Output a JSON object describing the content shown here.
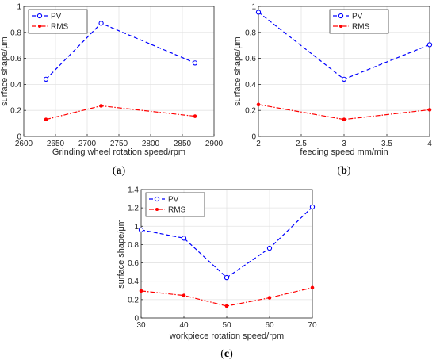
{
  "chart_data": [
    {
      "type": "line",
      "panel": "(a)",
      "xlabel": "Grinding wheel rotation speed/rpm",
      "ylabel": "surface shape/μm",
      "xlim": [
        2600,
        2900
      ],
      "ylim": [
        0,
        1
      ],
      "xticks": [
        2600,
        2650,
        2700,
        2750,
        2800,
        2850,
        2900
      ],
      "yticks": [
        0,
        0.2,
        0.4,
        0.6,
        0.8,
        1
      ],
      "grid": true,
      "legend_position": "top-left",
      "x": [
        2635,
        2722,
        2870
      ],
      "series": [
        {
          "name": "PV",
          "color": "#0000ff",
          "dash": "dashed",
          "marker": "open-circle",
          "values": [
            0.44,
            0.87,
            0.565
          ]
        },
        {
          "name": "RMS",
          "color": "#ff0000",
          "dash": "dash-dot",
          "marker": "filled-dot",
          "values": [
            0.13,
            0.235,
            0.155
          ]
        }
      ]
    },
    {
      "type": "line",
      "panel": "(b)",
      "xlabel": "feeding speed mm/min",
      "ylabel": "surface shape/μm",
      "xlim": [
        2,
        4
      ],
      "ylim": [
        0,
        1
      ],
      "xticks": [
        2,
        2.5,
        3,
        3.5,
        4
      ],
      "yticks": [
        0,
        0.2,
        0.4,
        0.6,
        0.8,
        1
      ],
      "grid": true,
      "legend_position": "top-center",
      "x": [
        2,
        3,
        4
      ],
      "series": [
        {
          "name": "PV",
          "color": "#0000ff",
          "dash": "dashed",
          "marker": "open-circle",
          "values": [
            0.955,
            0.44,
            0.705
          ]
        },
        {
          "name": "RMS",
          "color": "#ff0000",
          "dash": "dash-dot",
          "marker": "filled-dot",
          "values": [
            0.245,
            0.13,
            0.205
          ]
        }
      ]
    },
    {
      "type": "line",
      "panel": "(c)",
      "xlabel": "workpiece rotation speed/rpm",
      "ylabel": "surface shape/μm",
      "xlim": [
        30,
        70
      ],
      "ylim": [
        0,
        1.4
      ],
      "xticks": [
        30,
        40,
        50,
        60,
        70
      ],
      "yticks": [
        0,
        0.2,
        0.4,
        0.6,
        0.8,
        1,
        1.2,
        1.4
      ],
      "grid": true,
      "legend_position": "top-left",
      "x": [
        30,
        40,
        50,
        60,
        70
      ],
      "series": [
        {
          "name": "PV",
          "color": "#0000ff",
          "dash": "dashed",
          "marker": "open-circle",
          "values": [
            0.96,
            0.87,
            0.44,
            0.76,
            1.21
          ]
        },
        {
          "name": "RMS",
          "color": "#ff0000",
          "dash": "dash-dot",
          "marker": "filled-dot",
          "values": [
            0.295,
            0.245,
            0.13,
            0.22,
            0.33
          ]
        }
      ]
    }
  ]
}
